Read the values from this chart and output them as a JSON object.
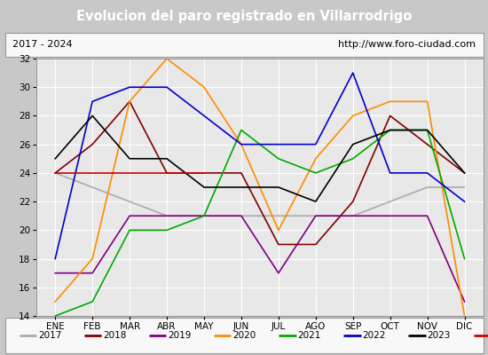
{
  "title": "Evolucion del paro registrado en Villarrodrigo",
  "subtitle_left": "2017 - 2024",
  "subtitle_right": "http://www.foro-ciudad.com",
  "months": [
    "ENE",
    "FEB",
    "MAR",
    "ABR",
    "MAY",
    "JUN",
    "JUL",
    "AGO",
    "SEP",
    "OCT",
    "NOV",
    "DIC"
  ],
  "series": {
    "2017": {
      "color": "#aaaaaa",
      "data": [
        24,
        23,
        22,
        21,
        21,
        21,
        21,
        21,
        21,
        22,
        23,
        23
      ]
    },
    "2018": {
      "color": "#800000",
      "data": [
        24,
        26,
        29,
        24,
        24,
        24,
        19,
        19,
        22,
        28,
        26,
        24
      ]
    },
    "2019": {
      "color": "#800080",
      "data": [
        17,
        17,
        21,
        21,
        21,
        21,
        17,
        21,
        21,
        21,
        21,
        15
      ]
    },
    "2020": {
      "color": "#ff8c00",
      "data": [
        15,
        18,
        29,
        32,
        30,
        26,
        20,
        25,
        28,
        29,
        29,
        14
      ]
    },
    "2021": {
      "color": "#00aa00",
      "data": [
        14,
        15,
        20,
        20,
        21,
        27,
        25,
        24,
        25,
        27,
        27,
        18
      ]
    },
    "2022": {
      "color": "#0000cc",
      "data": [
        18,
        29,
        30,
        30,
        28,
        26,
        26,
        26,
        31,
        24,
        24,
        22
      ]
    },
    "2023": {
      "color": "#000000",
      "data": [
        25,
        28,
        25,
        25,
        23,
        23,
        23,
        22,
        26,
        27,
        27,
        24
      ]
    },
    "2024": {
      "color": "#cc0000",
      "data": [
        24,
        24,
        24,
        24,
        24,
        null,
        null,
        null,
        null,
        null,
        null,
        null
      ]
    }
  },
  "ylim": [
    14,
    32
  ],
  "yticks": [
    14,
    16,
    18,
    20,
    22,
    24,
    26,
    28,
    30,
    32
  ],
  "title_bg_color": "#4466bb",
  "title_text_color": "#ffffff",
  "plot_bg_color": "#e8e8e8",
  "grid_color": "#ffffff",
  "subtitle_bg_color": "#f0f0f0",
  "legend_bg_color": "#f0f0f0"
}
